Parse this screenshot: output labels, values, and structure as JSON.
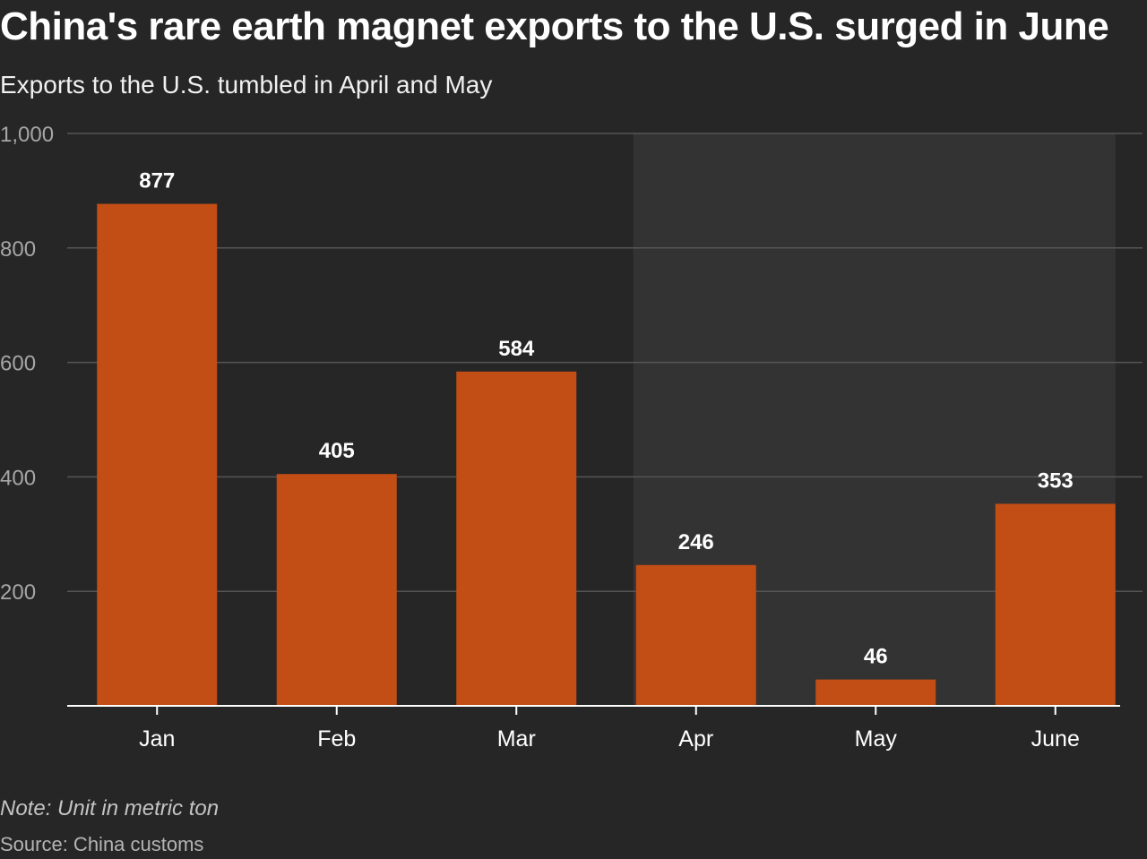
{
  "title": "China's rare earth magnet exports to the U.S. surged in June",
  "subtitle": "Exports to the U.S. tumbled in April and May",
  "note": "Note: Unit in metric ton",
  "source": "Source: China customs",
  "colors": {
    "background": "#262626",
    "bar": "#c24d15",
    "highlight_band": "#333333",
    "gridline": "#555555",
    "axis": "#ffffff",
    "tick_label": "#a6a6a6"
  },
  "chart_data": {
    "type": "bar",
    "categories": [
      "Jan",
      "Feb",
      "Mar",
      "Apr",
      "May",
      "June"
    ],
    "values": [
      877,
      405,
      584,
      246,
      46,
      353
    ],
    "data_labels": [
      "877",
      "405",
      "584",
      "246",
      "46",
      "353"
    ],
    "ylim": [
      0,
      1000
    ],
    "yticks": [
      200,
      400,
      600,
      800,
      1000
    ],
    "ytick_labels": [
      "200",
      "400",
      "600",
      "800",
      "1,000"
    ],
    "highlight_range": [
      "Apr",
      "June"
    ],
    "grid": true,
    "xlabel": "",
    "ylabel": ""
  }
}
